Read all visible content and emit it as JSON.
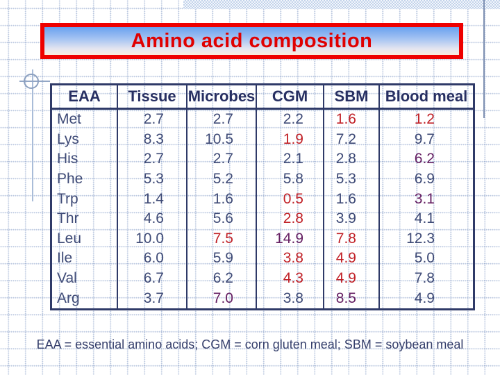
{
  "slide": {
    "title": "Amino acid composition",
    "footnote": "EAA = essential amino acids; CGM = corn gluten meal; SBM = soybean meal"
  },
  "colors": {
    "navy": "#3E4A76",
    "header_navy": "#272F62",
    "red": "#C12127",
    "plum": "#662063",
    "title_red": "#E00000",
    "title_border": "#EE0000",
    "border_navy": "#2F3A68",
    "accent_slate": "#7E90B2"
  },
  "table": {
    "columns": [
      "EAA",
      "Tissue",
      "Microbes",
      "CGM",
      "SBM",
      "Blood meal"
    ],
    "rows": [
      {
        "eaa": "Met",
        "values": [
          {
            "v": "2.7",
            "c": "navy"
          },
          {
            "v": "2.7",
            "c": "navy"
          },
          {
            "v": "2.2",
            "c": "navy"
          },
          {
            "v": "1.6",
            "c": "red"
          },
          {
            "v": "1.2",
            "c": "red"
          }
        ]
      },
      {
        "eaa": "Lys",
        "values": [
          {
            "v": "8.3",
            "c": "navy"
          },
          {
            "v": "10.5",
            "c": "navy"
          },
          {
            "v": "1.9",
            "c": "red"
          },
          {
            "v": "7.2",
            "c": "navy"
          },
          {
            "v": "9.7",
            "c": "navy"
          }
        ]
      },
      {
        "eaa": "His",
        "values": [
          {
            "v": "2.7",
            "c": "navy"
          },
          {
            "v": "2.7",
            "c": "navy"
          },
          {
            "v": "2.1",
            "c": "navy"
          },
          {
            "v": "2.8",
            "c": "navy"
          },
          {
            "v": "6.2",
            "c": "plum"
          }
        ]
      },
      {
        "eaa": "Phe",
        "values": [
          {
            "v": "5.3",
            "c": "navy"
          },
          {
            "v": "5.2",
            "c": "navy"
          },
          {
            "v": "5.8",
            "c": "navy"
          },
          {
            "v": "5.3",
            "c": "navy"
          },
          {
            "v": "6.9",
            "c": "navy"
          }
        ]
      },
      {
        "eaa": "Trp",
        "values": [
          {
            "v": "1.4",
            "c": "navy"
          },
          {
            "v": "1.6",
            "c": "navy"
          },
          {
            "v": "0.5",
            "c": "red"
          },
          {
            "v": "1.6",
            "c": "navy"
          },
          {
            "v": "3.1",
            "c": "plum"
          }
        ]
      },
      {
        "eaa": "Thr",
        "values": [
          {
            "v": "4.6",
            "c": "navy"
          },
          {
            "v": "5.6",
            "c": "navy"
          },
          {
            "v": "2.8",
            "c": "red"
          },
          {
            "v": "3.9",
            "c": "navy"
          },
          {
            "v": "4.1",
            "c": "navy"
          }
        ]
      },
      {
        "eaa": "Leu",
        "values": [
          {
            "v": "10.0",
            "c": "navy"
          },
          {
            "v": "7.5",
            "c": "red"
          },
          {
            "v": "14.9",
            "c": "plum"
          },
          {
            "v": "7.8",
            "c": "red"
          },
          {
            "v": "12.3",
            "c": "navy"
          }
        ]
      },
      {
        "eaa": "Ile",
        "values": [
          {
            "v": "6.0",
            "c": "navy"
          },
          {
            "v": "5.9",
            "c": "navy"
          },
          {
            "v": "3.8",
            "c": "red"
          },
          {
            "v": "4.9",
            "c": "red"
          },
          {
            "v": "5.0",
            "c": "navy"
          }
        ]
      },
      {
        "eaa": "Val",
        "values": [
          {
            "v": "6.7",
            "c": "navy"
          },
          {
            "v": "6.2",
            "c": "navy"
          },
          {
            "v": "4.3",
            "c": "red"
          },
          {
            "v": "4.9",
            "c": "red"
          },
          {
            "v": "7.8",
            "c": "navy"
          }
        ]
      },
      {
        "eaa": "Arg",
        "values": [
          {
            "v": "3.7",
            "c": "navy"
          },
          {
            "v": "7.0",
            "c": "plum"
          },
          {
            "v": "3.8",
            "c": "navy"
          },
          {
            "v": "8.5",
            "c": "plum"
          },
          {
            "v": "4.9",
            "c": "navy"
          }
        ]
      }
    ]
  }
}
